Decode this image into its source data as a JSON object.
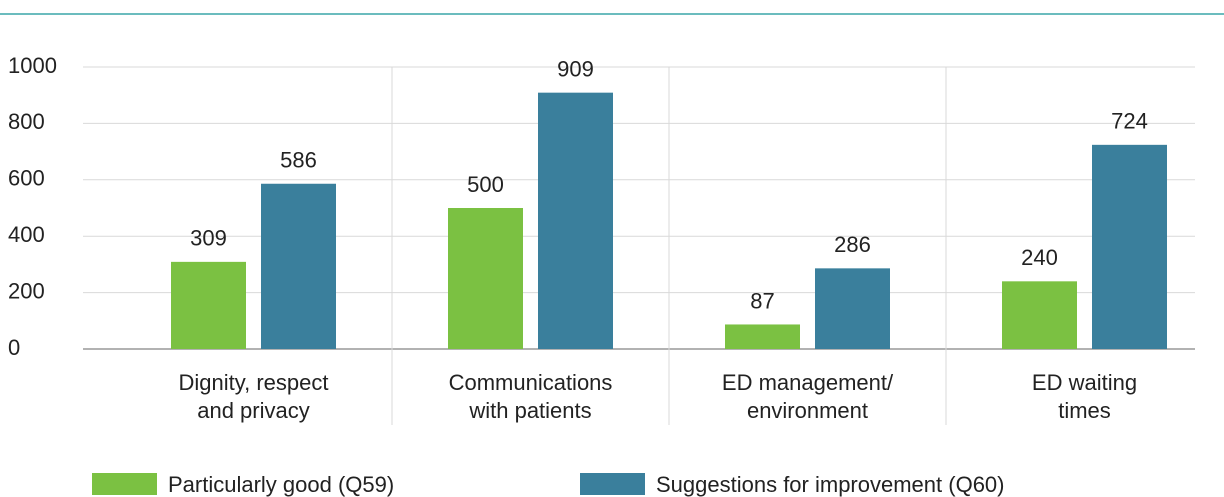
{
  "chart_data": {
    "type": "bar",
    "categories": [
      "Dignity, respect\nand privacy",
      "Communications\nwith patients",
      "ED management/\nenvironment",
      "ED waiting\ntimes"
    ],
    "series": [
      {
        "name": "Particularly good (Q59)",
        "color": "#7bc142",
        "values": [
          309,
          500,
          87,
          240
        ]
      },
      {
        "name": "Suggestions for improvement (Q60)",
        "color": "#3a7f9c",
        "values": [
          586,
          909,
          286,
          724
        ]
      }
    ],
    "ylim": [
      0,
      1000
    ],
    "yticks": [
      0,
      200,
      400,
      600,
      800,
      1000
    ],
    "grid": true
  }
}
